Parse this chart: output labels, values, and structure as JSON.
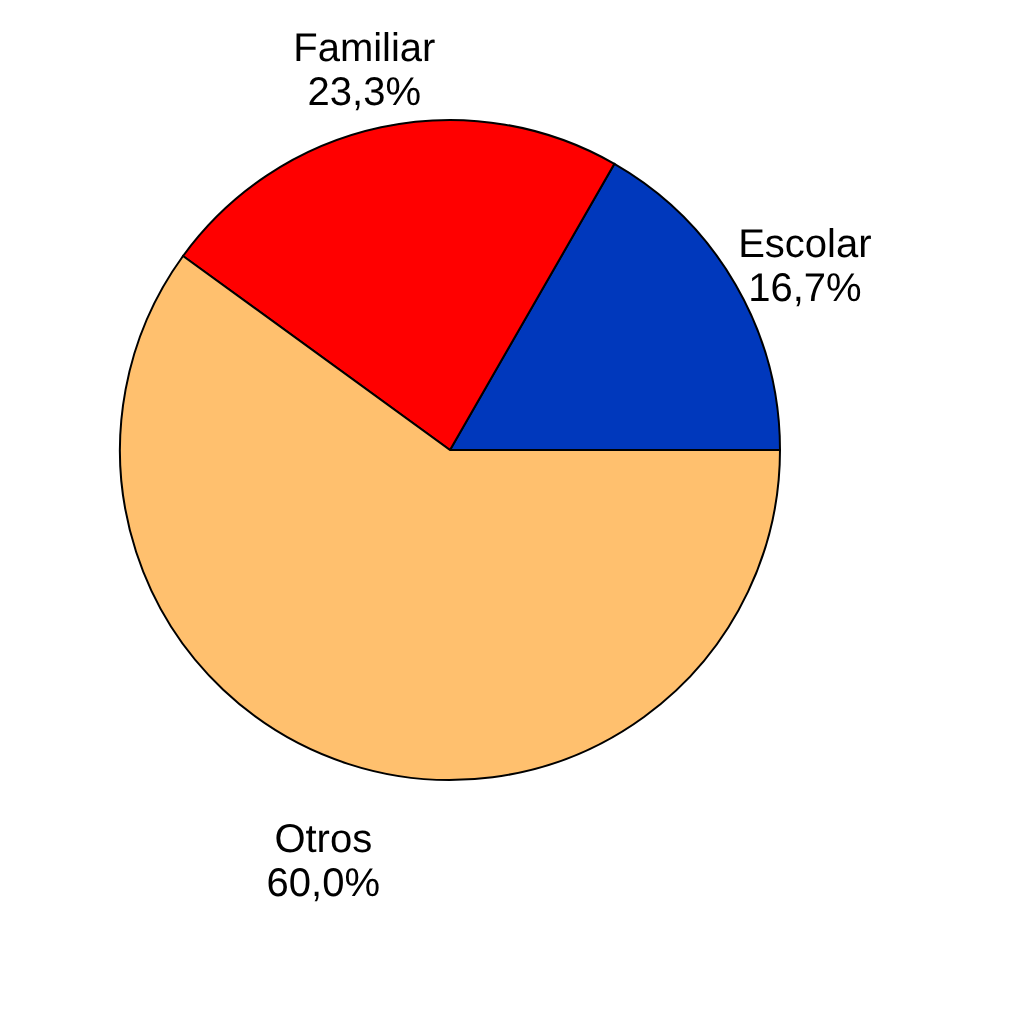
{
  "chart_data": {
    "type": "pie",
    "categories": [
      "Escolar",
      "Familiar",
      "Otros"
    ],
    "values": [
      16.7,
      23.3,
      60.0
    ],
    "value_labels": [
      "16,7%",
      "23,3%",
      "60,0%"
    ],
    "colors": [
      "#0038bc",
      "#ff0000",
      "#ffc06e"
    ],
    "legend": false
  }
}
